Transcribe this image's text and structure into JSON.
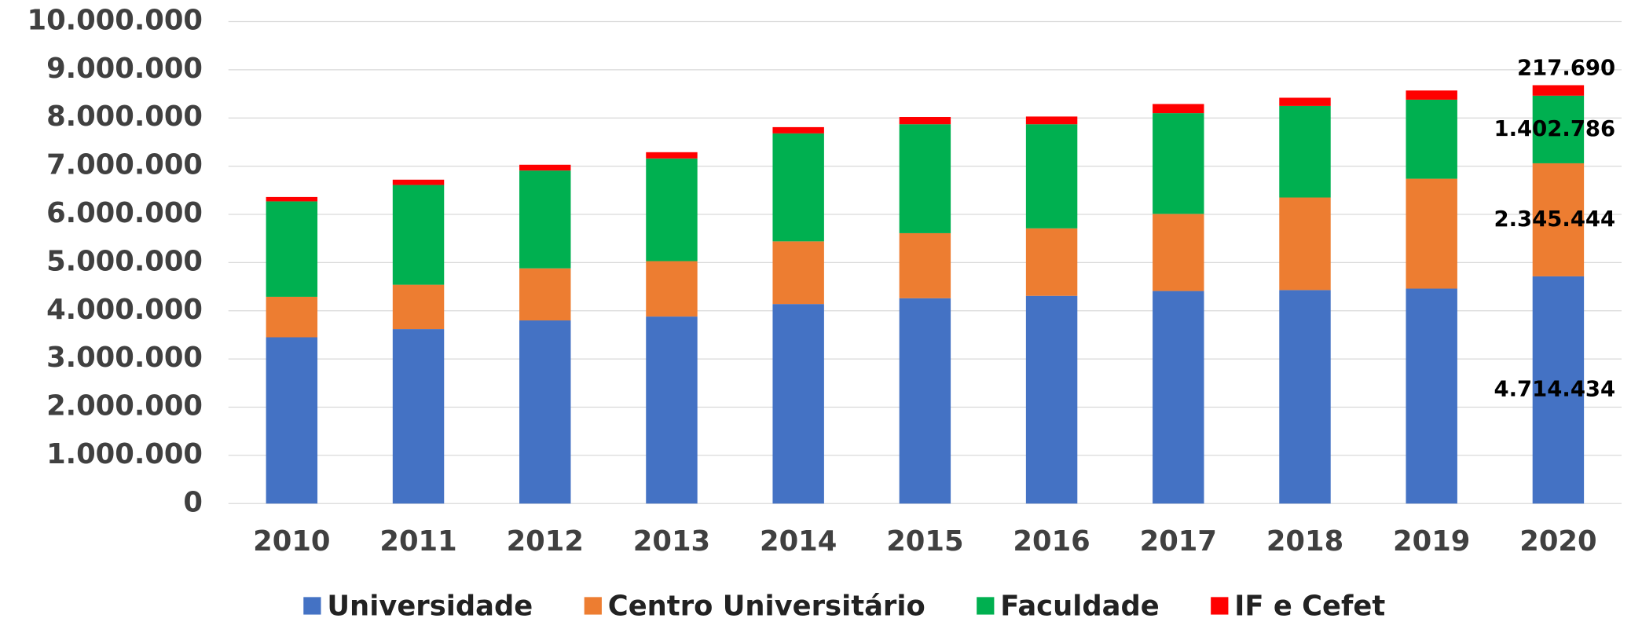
{
  "chart_data": {
    "type": "stacked_bar",
    "categories": [
      "2010",
      "2011",
      "2012",
      "2013",
      "2014",
      "2015",
      "2016",
      "2017",
      "2018",
      "2019",
      "2020"
    ],
    "series": [
      {
        "name": "Universidade",
        "color": "#4472c4",
        "values": [
          3450000,
          3620000,
          3800000,
          3880000,
          4140000,
          4260000,
          4310000,
          4410000,
          4430000,
          4460000,
          4714434
        ],
        "value_labels": [
          null,
          null,
          null,
          null,
          null,
          null,
          null,
          null,
          null,
          null,
          "4.714.434"
        ]
      },
      {
        "name": "Centro Universitário",
        "color": "#ed7d31",
        "values": [
          840000,
          920000,
          1080000,
          1150000,
          1300000,
          1350000,
          1400000,
          1600000,
          1920000,
          2280000,
          2345444
        ],
        "value_labels": [
          null,
          null,
          null,
          null,
          null,
          null,
          null,
          null,
          null,
          null,
          "2.345.444"
        ]
      },
      {
        "name": "Faculdade",
        "color": "#00b050",
        "values": [
          1980000,
          2070000,
          2030000,
          2130000,
          2240000,
          2260000,
          2160000,
          2090000,
          1900000,
          1640000,
          1402786
        ],
        "value_labels": [
          null,
          null,
          null,
          null,
          null,
          null,
          null,
          null,
          null,
          null,
          "1.402.786"
        ]
      },
      {
        "name": "IF e Cefet",
        "color": "#ff0000",
        "values": [
          90000,
          110000,
          120000,
          130000,
          130000,
          150000,
          160000,
          190000,
          170000,
          190000,
          217690
        ],
        "value_labels": [
          null,
          null,
          null,
          null,
          null,
          null,
          null,
          null,
          null,
          null,
          "217.690"
        ]
      }
    ],
    "ylim": [
      0,
      10000000
    ],
    "yticks": [
      0,
      {
        "value": 1000000,
        "label": "1.000.000"
      },
      {
        "value": 2000000,
        "label": "2.000.000"
      },
      {
        "value": 3000000,
        "label": "3.000.000"
      },
      {
        "value": 4000000,
        "label": "4.000.000"
      },
      {
        "value": 5000000,
        "label": "5.000.000"
      },
      {
        "value": 6000000,
        "label": "6.000.000"
      },
      {
        "value": 7000000,
        "label": "7.000.000"
      },
      {
        "value": 8000000,
        "label": "8.000.000"
      },
      {
        "value": 9000000,
        "label": "9.000.000"
      },
      {
        "value": 10000000,
        "label": "10.000.000"
      }
    ],
    "grid": true,
    "legend": "bottom"
  }
}
